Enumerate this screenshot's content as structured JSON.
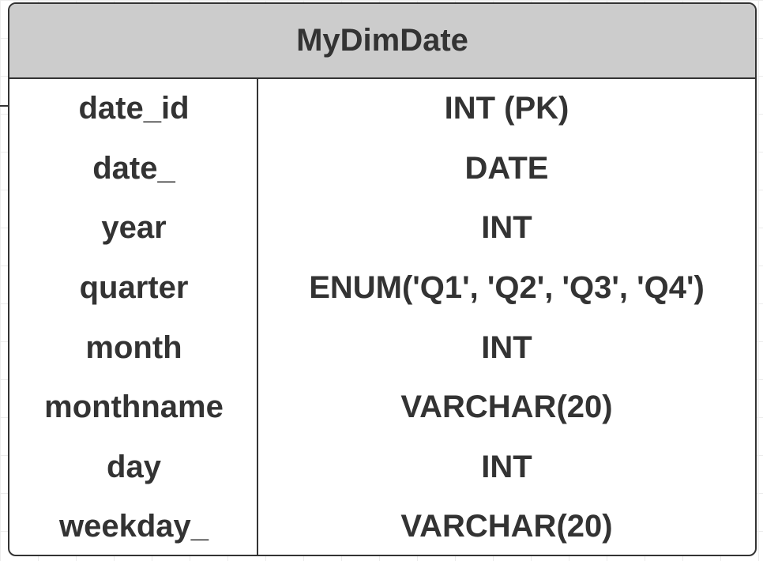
{
  "entity": {
    "title": "MyDimDate",
    "columns": [
      {
        "name": "date_id",
        "type": "INT (PK)"
      },
      {
        "name": "date_",
        "type": "DATE"
      },
      {
        "name": "year",
        "type": "INT"
      },
      {
        "name": "quarter",
        "type": "ENUM('Q1', 'Q2', 'Q3', 'Q4')"
      },
      {
        "name": "month",
        "type": "INT"
      },
      {
        "name": "monthname",
        "type": "VARCHAR(20)"
      },
      {
        "name": "day",
        "type": "INT"
      },
      {
        "name": "weekday_",
        "type": "VARCHAR(20)"
      }
    ]
  },
  "colors": {
    "header_bg": "#cccccc",
    "border": "#333333",
    "text": "#333333",
    "grid": "#ececec"
  }
}
